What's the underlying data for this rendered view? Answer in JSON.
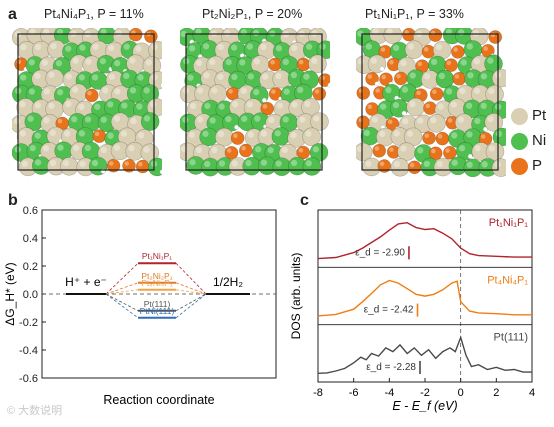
{
  "panel_a": {
    "letter": "a",
    "structures": [
      {
        "label": "Pt₄Ni₄P₁, P = 11%",
        "ratio": {
          "Pt": 4,
          "Ni": 4,
          "P": 1
        }
      },
      {
        "label": "Pt₂Ni₂P₁, P = 20%",
        "ratio": {
          "Pt": 2,
          "Ni": 2,
          "P": 1
        }
      },
      {
        "label": "Pt₁Ni₁P₁, P = 33%",
        "ratio": {
          "Pt": 1,
          "Ni": 1,
          "P": 1
        }
      }
    ],
    "legend": [
      {
        "label": "Pt",
        "color": "#d9cfb3"
      },
      {
        "label": "Ni",
        "color": "#4fbf4f"
      },
      {
        "label": "P",
        "color": "#e8731a"
      }
    ]
  },
  "panel_b": {
    "letter": "b",
    "ylabel": "ΔG_H* (eV)",
    "xlabel": "Reaction coordinate",
    "left_label": "H⁺ + e⁻",
    "right_label": "1/2H₂",
    "yticks": [
      "-0.6",
      "-0.4",
      "-0.2",
      "0.0",
      "0.2",
      "0.4",
      "0.6"
    ],
    "chart_data": {
      "type": "line",
      "xlabel": "Reaction coordinate",
      "ylabel": "ΔG_H* (eV)",
      "ylim": [
        -0.6,
        0.6
      ],
      "series": [
        {
          "name": "Pt₁Ni₁P₁",
          "value": 0.22,
          "color": "#b0242b"
        },
        {
          "name": "Pt₂Ni₂P₁",
          "value": 0.08,
          "color": "#e0782a"
        },
        {
          "name": "Pt₄Ni₄P₁",
          "value": 0.03,
          "color": "#f0a540"
        },
        {
          "name": "Pt(111)",
          "value": -0.12,
          "color": "#555555"
        },
        {
          "name": "PtNi(111)",
          "value": -0.17,
          "color": "#2f6fb5"
        }
      ]
    }
  },
  "panel_c": {
    "letter": "c",
    "ylabel": "DOS (arb. units)",
    "xlabel": "E - E_f (eV)",
    "xticks": [
      "-8",
      "-6",
      "-4",
      "-2",
      "0",
      "2",
      "4"
    ],
    "chart_data": {
      "type": "line",
      "xlabel": "E - E_f (eV)",
      "ylabel": "DOS (arb. units)",
      "xlim": [
        -8,
        4
      ],
      "series": [
        {
          "name": "Pt₁Ni₁P₁",
          "d_band_center": -2.9,
          "d_band_label": "ε_d = -2.90",
          "color": "#b0242b",
          "x": [
            -8,
            -7,
            -6,
            -5.5,
            -5,
            -4.5,
            -4,
            -3.5,
            -3,
            -2.5,
            -2,
            -1.5,
            -1,
            -0.5,
            0,
            0.5,
            1,
            2,
            3,
            4
          ],
          "y": [
            0.02,
            0.05,
            0.18,
            0.3,
            0.45,
            0.6,
            0.78,
            0.95,
            0.98,
            0.85,
            0.8,
            0.82,
            0.7,
            0.55,
            0.3,
            0.15,
            0.1,
            0.08,
            0.06,
            0.06
          ]
        },
        {
          "name": "Pt₄Ni₄P₁",
          "d_band_center": -2.42,
          "d_band_label": "ε_d = -2.42",
          "color": "#f07d14",
          "x": [
            -8,
            -7,
            -6,
            -5.5,
            -5,
            -4.5,
            -4,
            -3.5,
            -3,
            -2.5,
            -2,
            -1.5,
            -1,
            -0.5,
            -0.2,
            0,
            0.5,
            1,
            2,
            3,
            4
          ],
          "y": [
            0.02,
            0.06,
            0.2,
            0.4,
            0.62,
            0.85,
            0.97,
            0.9,
            0.75,
            0.6,
            0.55,
            0.6,
            0.72,
            0.9,
            0.95,
            0.4,
            0.15,
            0.1,
            0.08,
            0.05,
            0.05
          ]
        },
        {
          "name": "Pt(111)",
          "d_band_center": -2.28,
          "d_band_label": "ε_d = -2.28",
          "color": "#4a4a4a",
          "x": [
            -8,
            -7.5,
            -7,
            -6.5,
            -6,
            -5.6,
            -5.3,
            -5,
            -4.6,
            -4.2,
            -3.8,
            -3.4,
            -3,
            -2.6,
            -2.2,
            -1.8,
            -1.4,
            -1,
            -0.6,
            -0.3,
            0,
            0.3,
            0.6,
            1,
            1.5,
            2,
            2.5,
            3,
            3.5,
            4
          ],
          "y": [
            0.02,
            0.03,
            0.08,
            0.15,
            0.3,
            0.45,
            0.38,
            0.55,
            0.48,
            0.7,
            0.6,
            0.78,
            0.55,
            0.7,
            0.5,
            0.65,
            0.42,
            0.6,
            0.7,
            0.6,
            0.98,
            0.5,
            0.2,
            0.25,
            0.12,
            0.18,
            0.1,
            0.12,
            0.05,
            0.05
          ]
        }
      ]
    }
  },
  "watermark": "© 大数说明"
}
